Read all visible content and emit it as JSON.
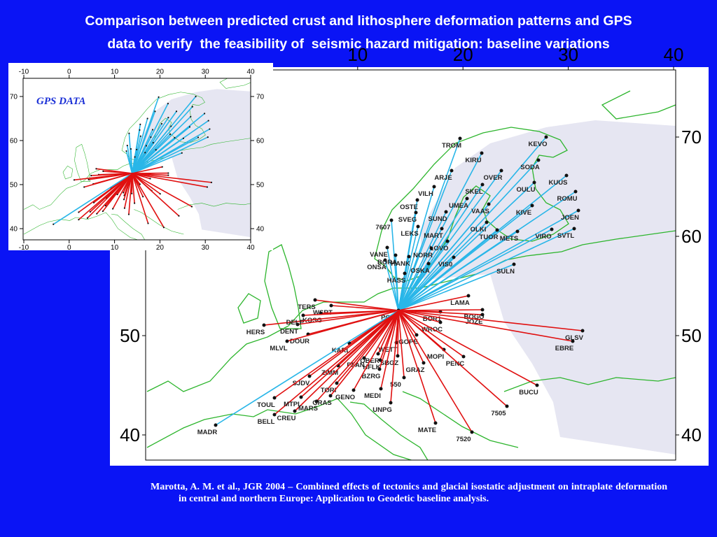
{
  "slide": {
    "title_lines": [
      "Comparison between predicted crust and lithosphere deformation patterns and GPS",
      "data to verify  the feasibility of  seismic hazard mitigation: baseline variations"
    ],
    "citation": "Marotta, A. M. et al., JGR 2004 – Combined effects of tectonics and glacial isostatic adjustment on intraplate deformation in central and northern Europe: Application to Geodetic baseline analysis."
  },
  "chart_data": [
    {
      "type": "map",
      "xlim": [
        -10,
        40
      ],
      "ylim": [
        37.5,
        76.5
      ],
      "xticks": [
        10,
        20,
        30,
        40
      ],
      "yticks": [
        40,
        50,
        60,
        70
      ],
      "stations": [
        "TROM",
        "KEVO",
        "KIRU",
        "SODA",
        "ARJE",
        "OVER",
        "KUUS",
        "OULU",
        "VILH",
        "SKEL",
        "ROMU",
        "OSTE",
        "UMEA",
        "VAAS",
        "KIVE",
        "JOEN",
        "SVEG",
        "SUND",
        "7607",
        "LEKS",
        "OLKI",
        "MART",
        "TUOR",
        "METS",
        "VIRO",
        "SVTL",
        "LOVO",
        "VANE",
        "NORR",
        "ONSA",
        "BORA",
        "HANK",
        "VIS0",
        "OSKA",
        "SULN",
        "HASS",
        "LAMA",
        "TERS",
        "WSRT",
        "POTS",
        "BOR1",
        "BOGO",
        "JOZE",
        "KOSG",
        "HERS",
        "DENT",
        "DELF",
        "DOUR",
        "WROC",
        "GLSV",
        "EBRE",
        "KARL",
        "GOPE",
        "WETT",
        "OBER",
        "PFAN",
        "MOPI",
        "HFLK",
        "SBGZ",
        "PENC",
        "GRAZ",
        "BZRG",
        "MLVL",
        "ZIMM",
        "SJDV",
        "550",
        "MEDI",
        "GENO",
        "TOUL",
        "BUCU",
        "CREU",
        "MARS",
        "UNPG",
        "BELL",
        "7505",
        "MADR",
        "MATE",
        "7520",
        "TORI",
        "MTPL",
        "GRAS"
      ]
    },
    {
      "type": "map",
      "label": "GPS DATA",
      "xlim": [
        -10,
        40
      ],
      "ylim": [
        37.5,
        74
      ],
      "xticks": [
        -10,
        0,
        10,
        20,
        30,
        40
      ],
      "yticks": [
        40,
        50,
        60,
        70
      ]
    }
  ]
}
